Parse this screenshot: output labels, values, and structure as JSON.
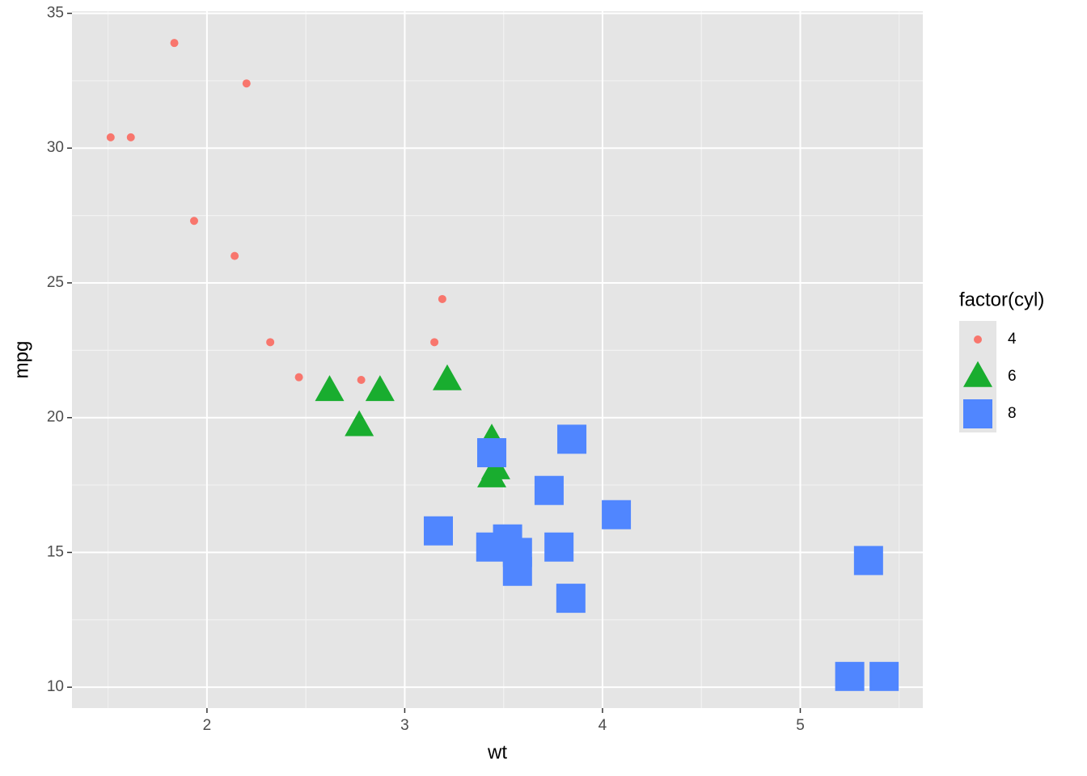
{
  "chart_data": {
    "type": "scatter",
    "x_label": "wt",
    "y_label": "mpg",
    "xlim": [
      1.3175,
      5.6196
    ],
    "ylim": [
      9.225,
      35.075
    ],
    "xticks": [
      2,
      3,
      4,
      5
    ],
    "yticks": [
      10,
      15,
      20,
      25,
      30,
      35
    ],
    "grid": true,
    "legend_title": "factor(cyl)",
    "legend_position": "right",
    "series": [
      {
        "name": "4",
        "color": "#f8766d",
        "shape": "circle",
        "x": [
          2.32,
          3.19,
          3.15,
          2.2,
          1.615,
          1.835,
          2.465,
          1.935,
          2.14,
          1.513,
          2.78
        ],
        "values": [
          22.8,
          24.4,
          22.8,
          32.4,
          30.4,
          33.9,
          21.5,
          27.3,
          26,
          30.4,
          21.4
        ]
      },
      {
        "name": "6",
        "color": "#19ad2f",
        "shape": "triangle",
        "x": [
          2.62,
          2.875,
          3.215,
          3.46,
          3.44,
          3.44,
          2.77
        ],
        "values": [
          21,
          21,
          21.4,
          18.1,
          19.2,
          17.8,
          19.7
        ]
      },
      {
        "name": "8",
        "color": "#5086ff",
        "shape": "square",
        "x": [
          3.44,
          3.57,
          4.07,
          3.73,
          3.78,
          5.25,
          5.424,
          5.345,
          3.52,
          3.435,
          3.84,
          3.845,
          3.17,
          3.57
        ],
        "values": [
          18.7,
          14.3,
          16.4,
          17.3,
          15.2,
          10.4,
          10.4,
          14.7,
          15.5,
          15.2,
          13.3,
          19.2,
          15.8,
          15
        ]
      }
    ]
  }
}
